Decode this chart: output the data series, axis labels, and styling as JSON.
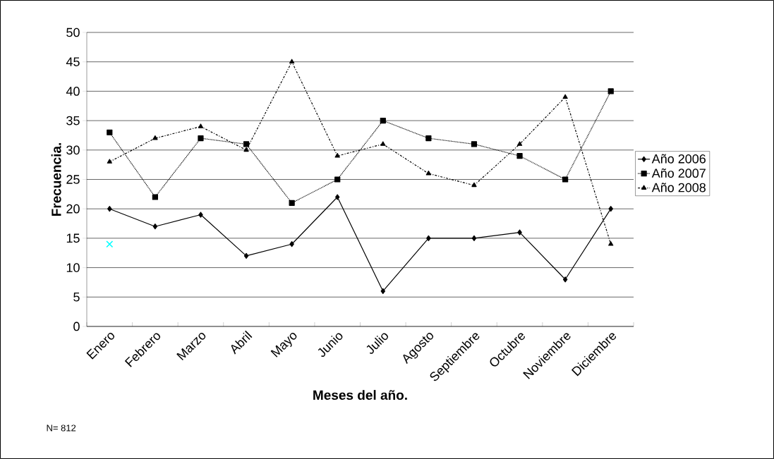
{
  "chart_data": {
    "type": "line",
    "xlabel": "Meses del año.",
    "ylabel": "Frecuencia.",
    "categories": [
      "Enero",
      "Febrero",
      "Marzo",
      "Abril",
      "Mayo",
      "Junio",
      "Julio",
      "Agosto",
      "Septiembre",
      "Octubre",
      "Noviembre",
      "Diciembre"
    ],
    "series": [
      {
        "name": "Año 2006",
        "color": "#000000",
        "marker": "diamond",
        "line_style": "solid",
        "values": [
          20,
          17,
          19,
          12,
          14,
          22,
          6,
          15,
          15,
          16,
          8,
          20
        ]
      },
      {
        "name": "Año 2007",
        "color": "#000000",
        "marker": "square",
        "line_style": "dotted",
        "values": [
          33,
          22,
          32,
          31,
          21,
          25,
          35,
          32,
          31,
          29,
          25,
          40
        ]
      },
      {
        "name": "Año 2008",
        "color": "#000000",
        "marker": "triangle",
        "line_style": "dashdot",
        "values": [
          28,
          32,
          34,
          30,
          45,
          29,
          31,
          26,
          24,
          31,
          39,
          14
        ]
      },
      {
        "type": "scatter",
        "color": "#00ffff",
        "marker": "cross",
        "values": [
          14,
          null,
          null,
          null,
          null,
          null,
          null,
          null,
          null,
          null,
          null,
          null
        ]
      }
    ],
    "ylim": [
      0,
      50
    ],
    "yticks": [
      0,
      5,
      10,
      15,
      20,
      25,
      30,
      35,
      40,
      45,
      50
    ],
    "grid": "y",
    "legend": "right",
    "annotations": [
      "N= 812"
    ]
  }
}
